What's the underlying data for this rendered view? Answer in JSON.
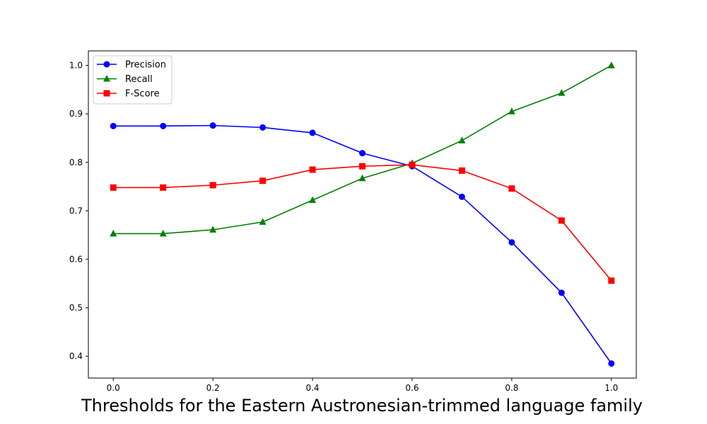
{
  "chart_data": {
    "type": "line",
    "title": "",
    "xlabel": "Thresholds for the Eastern Austronesian-trimmed language family",
    "ylabel": "",
    "xlim": [
      -0.05,
      1.05
    ],
    "ylim": [
      0.355,
      1.03
    ],
    "grid": false,
    "legend_position": "top-left",
    "x_ticks": [
      "0.0",
      "0.2",
      "0.4",
      "0.6",
      "0.8",
      "1.0"
    ],
    "y_ticks": [
      "0.4",
      "0.5",
      "0.6",
      "0.7",
      "0.8",
      "0.9",
      "1.0"
    ],
    "x": [
      0.0,
      0.1,
      0.2,
      0.3,
      0.4,
      0.5,
      0.6,
      0.7,
      0.8,
      0.9,
      1.0
    ],
    "series": [
      {
        "name": "Precision",
        "color": "#0000ff",
        "marker": "circle",
        "values": [
          0.875,
          0.875,
          0.876,
          0.872,
          0.861,
          0.819,
          0.792,
          0.729,
          0.635,
          0.531,
          0.385
        ]
      },
      {
        "name": "Recall",
        "color": "#008000",
        "marker": "triangle",
        "values": [
          0.653,
          0.653,
          0.661,
          0.677,
          0.722,
          0.767,
          0.798,
          0.845,
          0.905,
          0.943,
          1.0
        ]
      },
      {
        "name": "F-Score",
        "color": "#ff0000",
        "marker": "square",
        "values": [
          0.748,
          0.748,
          0.753,
          0.762,
          0.785,
          0.792,
          0.795,
          0.783,
          0.746,
          0.68,
          0.556
        ]
      }
    ]
  }
}
